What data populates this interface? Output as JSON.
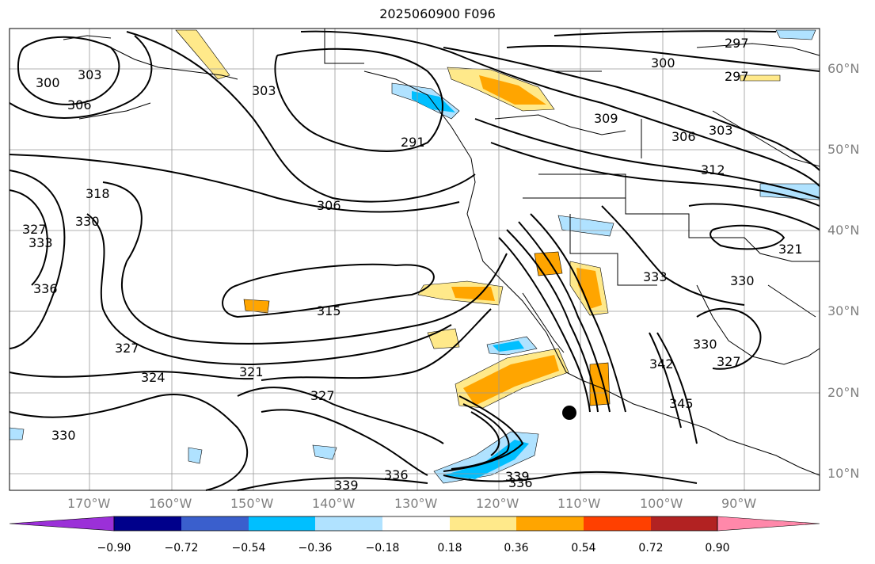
{
  "title": "2025060900 F096",
  "lat_labels": [
    "60°N",
    "50°N",
    "40°N",
    "30°N",
    "20°N",
    "10°N"
  ],
  "lon_labels": [
    "170°W",
    "160°W",
    "150°W",
    "140°W",
    "130°W",
    "120°W",
    "110°W",
    "100°W",
    "90°W"
  ],
  "contour_labels": [
    "297",
    "297",
    "300",
    "300",
    "303",
    "303",
    "303",
    "306",
    "306",
    "306",
    "309",
    "312",
    "315",
    "318",
    "321",
    "321",
    "324",
    "327",
    "327",
    "327",
    "327",
    "330",
    "330",
    "330",
    "330",
    "333",
    "333",
    "336",
    "336",
    "336",
    "339",
    "339",
    "342",
    "345",
    "291"
  ],
  "colorbar": {
    "ticks": [
      "−0.90",
      "−0.72",
      "−0.54",
      "−0.36",
      "−0.18",
      "0.18",
      "0.36",
      "0.54",
      "0.72",
      "0.90"
    ],
    "colors": [
      "#9b30d8",
      "#00008b",
      "#3a5fcd",
      "#00bfff",
      "#b0e2ff",
      "#ffffff",
      "#ffe98a",
      "#ffa500",
      "#ff4000",
      "#b22222",
      "#ff88aa"
    ]
  }
}
